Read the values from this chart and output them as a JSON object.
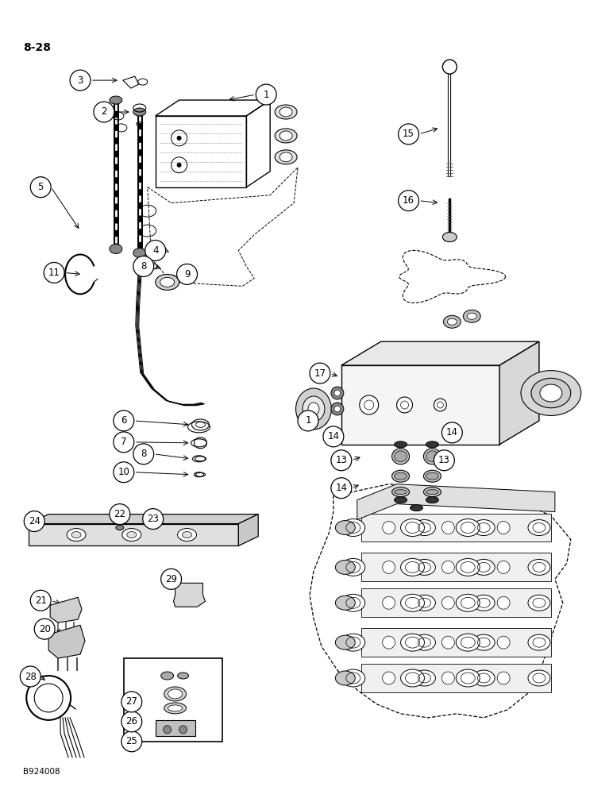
{
  "page_label": "8-28",
  "doc_code": "B924008",
  "bg_color": "#ffffff",
  "fg_color": "#000000"
}
